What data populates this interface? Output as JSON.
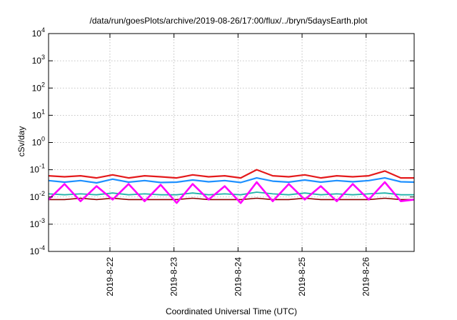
{
  "chart_data": {
    "type": "line",
    "title": "/data/run/goesPlots/archive/2019-08-26/17:00/flux/../bryn/5daysEarth.plot",
    "xlabel": "Coordinated Universal Time (UTC)",
    "ylabel": "cSv/day",
    "y_scale": "log",
    "ylim": [
      0.0001,
      10000
    ],
    "y_ticks": [
      {
        "value": 0.0001,
        "base": "10",
        "exp": "-4"
      },
      {
        "value": 0.001,
        "base": "10",
        "exp": "-3"
      },
      {
        "value": 0.01,
        "base": "10",
        "exp": "-2"
      },
      {
        "value": 0.1,
        "base": "10",
        "exp": "-1"
      },
      {
        "value": 1,
        "base": "10",
        "exp": "0"
      },
      {
        "value": 10,
        "base": "10",
        "exp": "1"
      },
      {
        "value": 100,
        "base": "10",
        "exp": "2"
      },
      {
        "value": 1000,
        "base": "10",
        "exp": "3"
      },
      {
        "value": 10000,
        "base": "10",
        "exp": "4"
      }
    ],
    "xlim": [
      "2019-08-21T01:00",
      "2019-08-26T18:00"
    ],
    "x_ticks": [
      "2019-8-22",
      "2019-8-23",
      "2019-8-24",
      "2019-8-25",
      "2019-8-26"
    ],
    "grid": true,
    "legend": "none",
    "x_points": [
      "2019-08-21T01:00",
      "2019-08-21T07:00",
      "2019-08-21T13:00",
      "2019-08-21T19:00",
      "2019-08-22T01:00",
      "2019-08-22T07:00",
      "2019-08-22T13:00",
      "2019-08-22T19:00",
      "2019-08-23T01:00",
      "2019-08-23T07:00",
      "2019-08-23T13:00",
      "2019-08-23T19:00",
      "2019-08-24T01:00",
      "2019-08-24T07:00",
      "2019-08-24T13:00",
      "2019-08-24T19:00",
      "2019-08-25T01:00",
      "2019-08-25T07:00",
      "2019-08-25T13:00",
      "2019-08-25T19:00",
      "2019-08-26T01:00",
      "2019-08-26T07:00",
      "2019-08-26T13:00",
      "2019-08-26T18:00"
    ],
    "series": [
      {
        "color": "#e41a1c",
        "width": 2.2,
        "values": [
          0.06,
          0.055,
          0.06,
          0.05,
          0.065,
          0.05,
          0.06,
          0.055,
          0.05,
          0.065,
          0.055,
          0.06,
          0.05,
          0.1,
          0.06,
          0.055,
          0.065,
          0.05,
          0.06,
          0.055,
          0.06,
          0.09,
          0.05,
          0.05
        ]
      },
      {
        "color": "#1e90ff",
        "width": 2.2,
        "values": [
          0.04,
          0.035,
          0.04,
          0.033,
          0.045,
          0.035,
          0.04,
          0.034,
          0.035,
          0.042,
          0.036,
          0.04,
          0.034,
          0.05,
          0.038,
          0.035,
          0.042,
          0.035,
          0.04,
          0.036,
          0.04,
          0.05,
          0.036,
          0.035
        ]
      },
      {
        "color": "#20b2aa",
        "width": 1.8,
        "values": [
          0.013,
          0.012,
          0.013,
          0.012,
          0.014,
          0.012,
          0.013,
          0.012,
          0.012,
          0.014,
          0.012,
          0.013,
          0.012,
          0.015,
          0.013,
          0.012,
          0.014,
          0.012,
          0.013,
          0.012,
          0.013,
          0.014,
          0.012,
          0.012
        ]
      },
      {
        "color": "#8b0000",
        "width": 1.6,
        "values": [
          0.008,
          0.008,
          0.009,
          0.008,
          0.009,
          0.008,
          0.008,
          0.008,
          0.008,
          0.009,
          0.008,
          0.008,
          0.008,
          0.009,
          0.008,
          0.008,
          0.009,
          0.008,
          0.008,
          0.008,
          0.008,
          0.009,
          0.008,
          0.008
        ]
      },
      {
        "color": "#ff00ff",
        "width": 2.6,
        "values": [
          0.008,
          0.03,
          0.007,
          0.025,
          0.008,
          0.03,
          0.007,
          0.028,
          0.006,
          0.03,
          0.008,
          0.025,
          0.006,
          0.035,
          0.007,
          0.03,
          0.008,
          0.025,
          0.007,
          0.03,
          0.008,
          0.035,
          0.007,
          0.008
        ]
      }
    ]
  }
}
